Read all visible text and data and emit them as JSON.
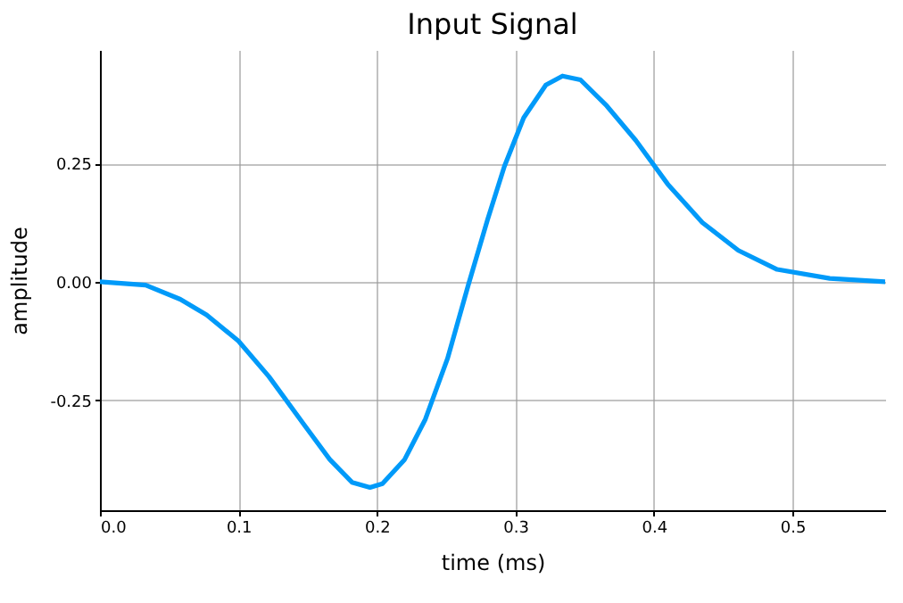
{
  "chart_data": {
    "type": "line",
    "title": "Input Signal",
    "xlabel": "time (ms)",
    "ylabel": "amplitude",
    "x": [
      0,
      0.033,
      0.058,
      0.077,
      0.1,
      0.122,
      0.147,
      0.166,
      0.182,
      0.195,
      0.204,
      0.22,
      0.235,
      0.251,
      0.266,
      0.28,
      0.292,
      0.306,
      0.322,
      0.334,
      0.347,
      0.366,
      0.387,
      0.41,
      0.435,
      0.461,
      0.489,
      0.527,
      0.567
    ],
    "series": [
      {
        "color": "#009af9",
        "values": [
          0,
          -0.007,
          -0.037,
          -0.07,
          -0.125,
          -0.2,
          -0.3,
          -0.375,
          -0.423,
          -0.434,
          -0.426,
          -0.375,
          -0.29,
          -0.162,
          -0.007,
          0.132,
          0.243,
          0.346,
          0.415,
          0.434,
          0.426,
          0.371,
          0.298,
          0.206,
          0.125,
          0.066,
          0.026,
          0.007,
          0
        ]
      }
    ],
    "xlim": [
      0,
      0.567
    ],
    "ylim": [
      -0.482,
      0.489
    ],
    "xticks": [
      {
        "value": 0,
        "label": "0.0"
      },
      0.1,
      0.2,
      0.3,
      0.4,
      0.5
    ],
    "yticks": [
      -0.25,
      {
        "value": 0,
        "label": "0.00"
      },
      0.25
    ],
    "grid": true,
    "marker": "none",
    "line_style": "solid"
  }
}
